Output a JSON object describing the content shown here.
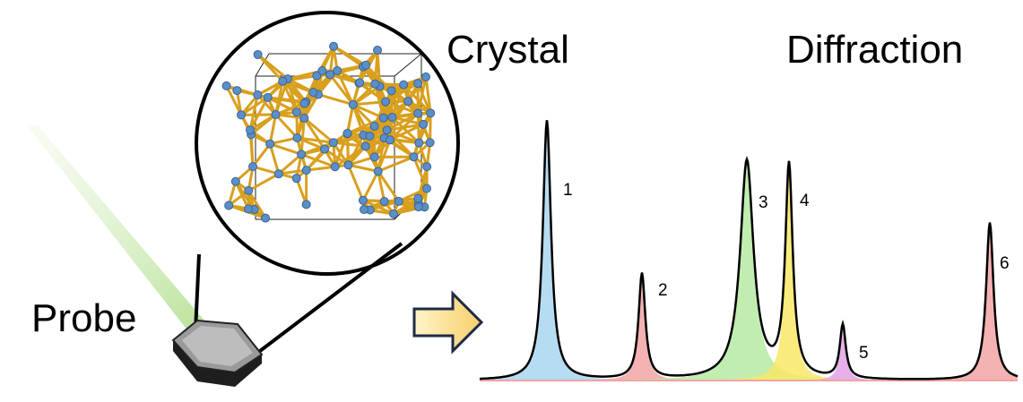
{
  "labels": {
    "crystal": "Crystal",
    "diffraction": "Diffraction",
    "probe": "Probe"
  },
  "peaks": [
    "1",
    "2",
    "3",
    "4",
    "5",
    "6"
  ]
}
